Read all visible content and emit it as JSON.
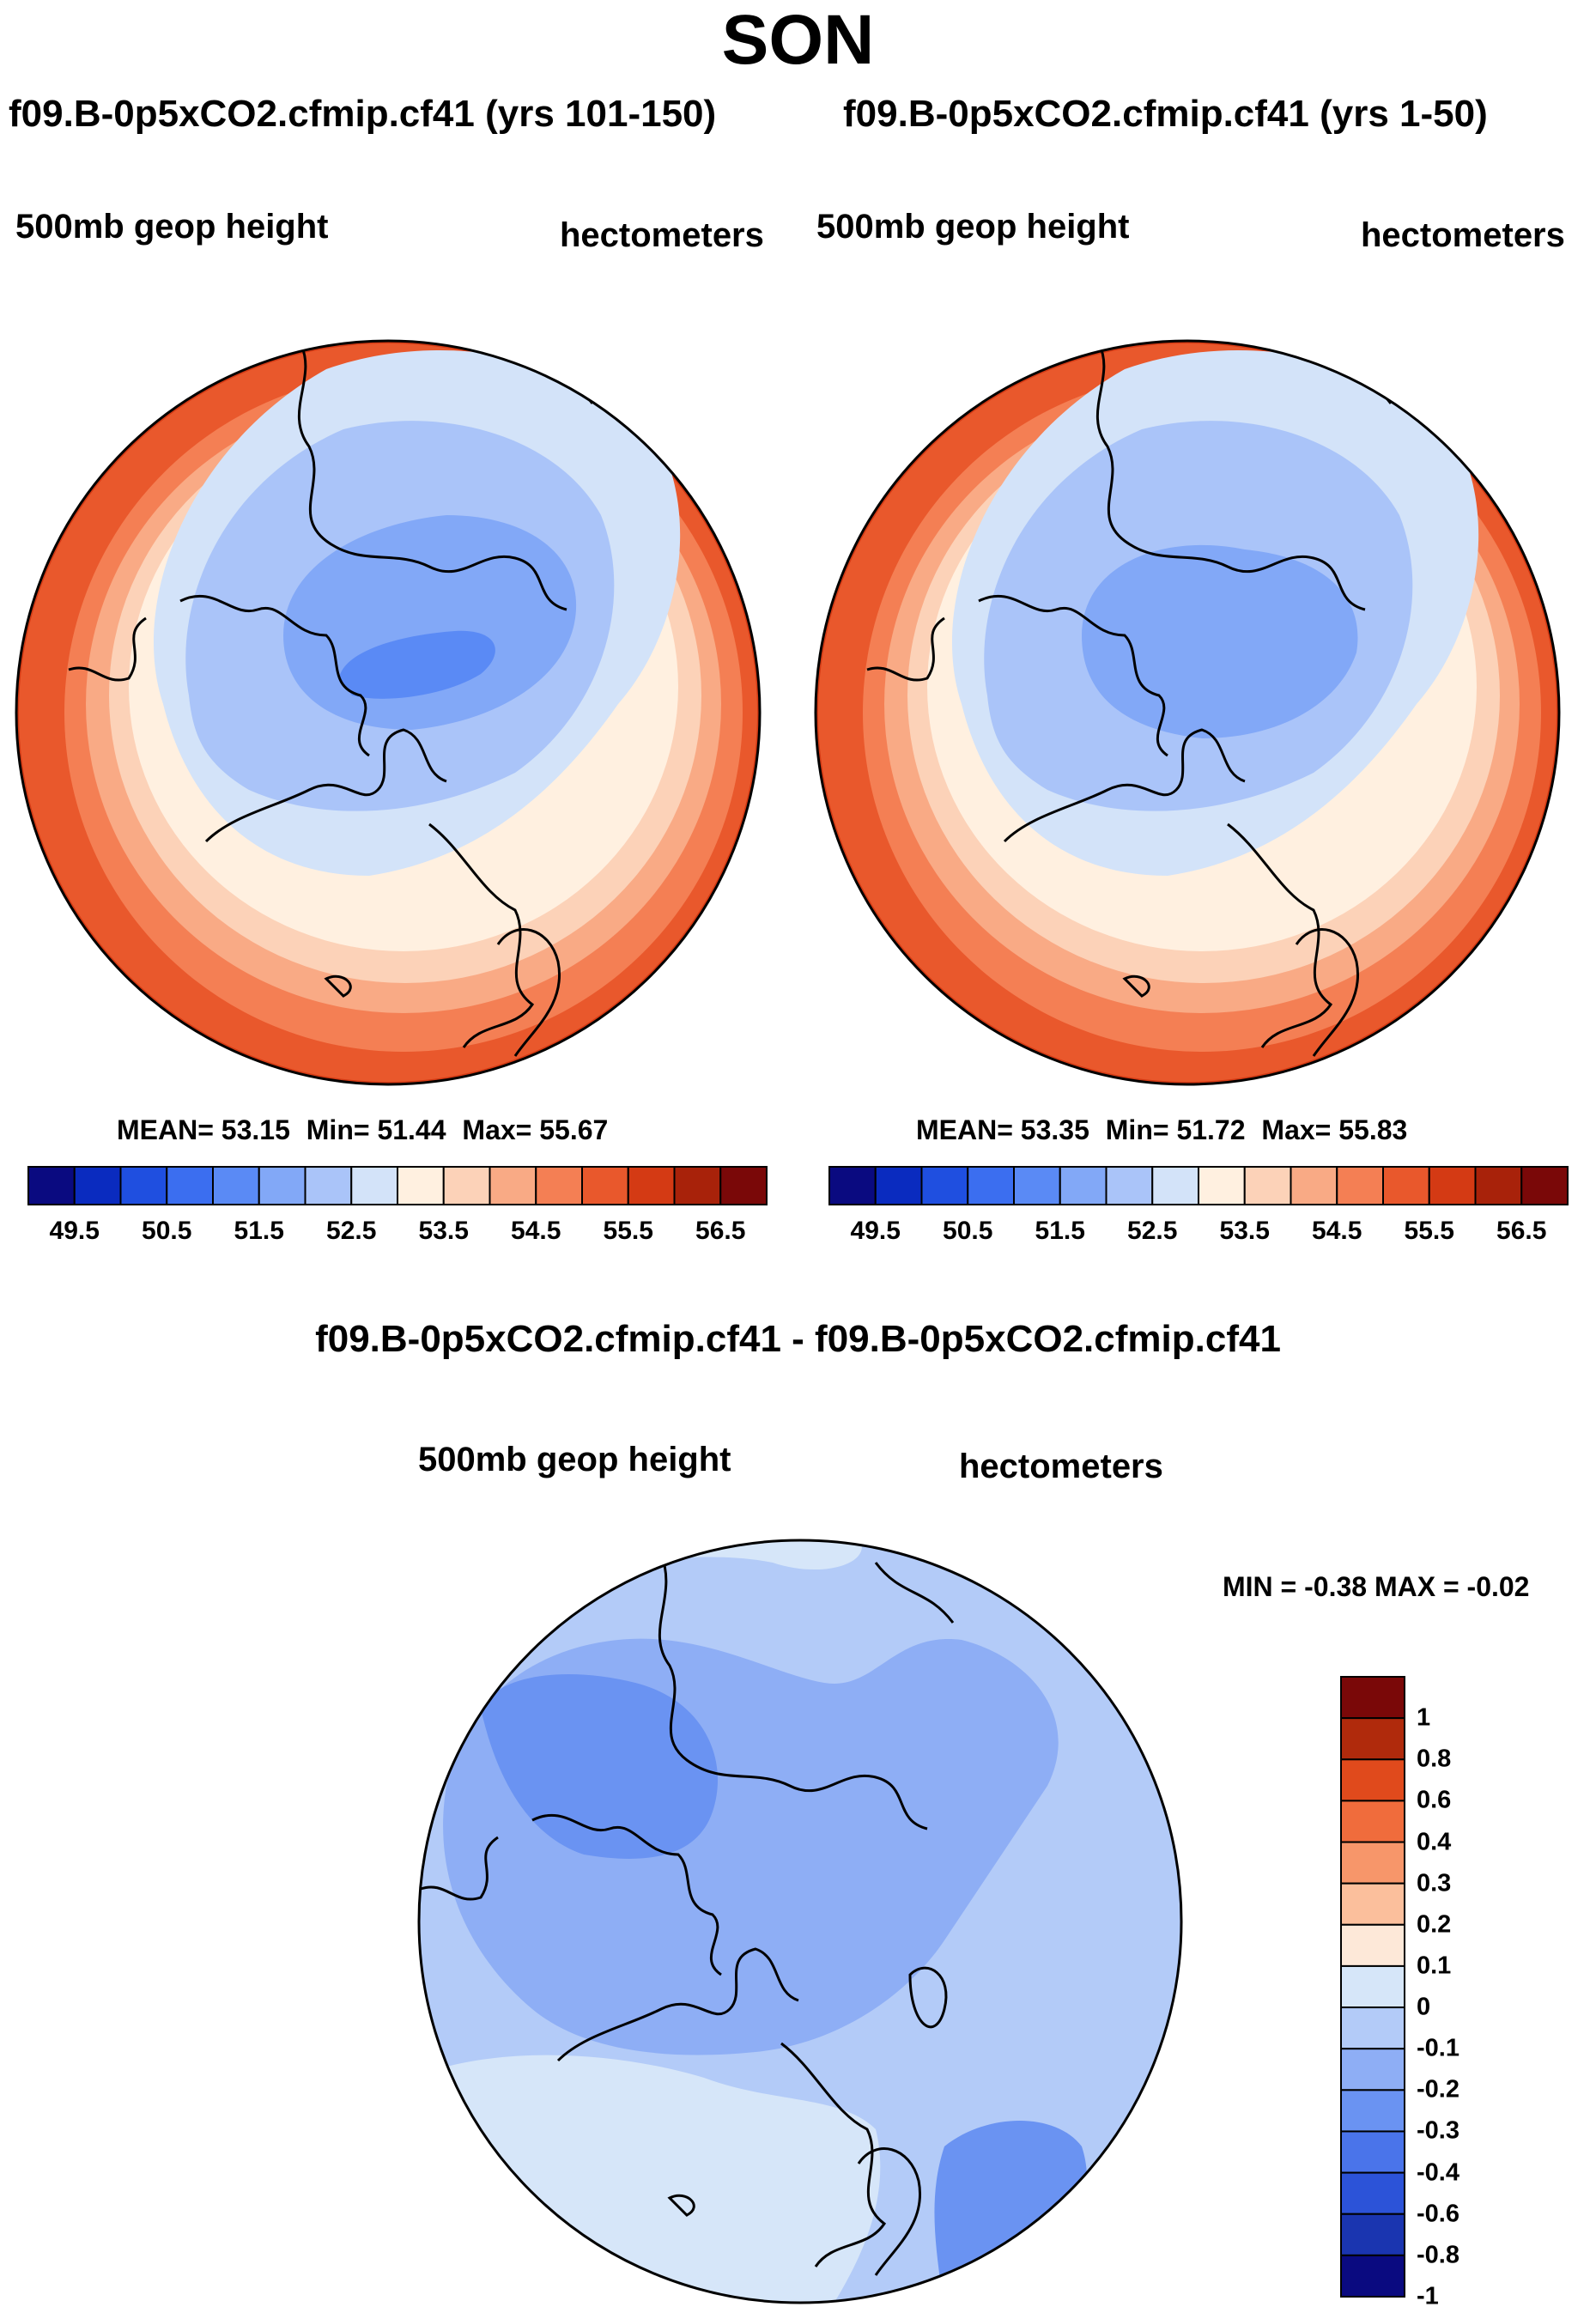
{
  "title": "SON",
  "panel_left": {
    "title": "f09.B-0p5xCO2.cfmip.cf41 (yrs 101-150)",
    "variable": "500mb geop height",
    "units": "hectometers",
    "mean_label": "MEAN=",
    "mean": "53.15",
    "min_label": "Min=",
    "min": "51.44",
    "max_label": "Max=",
    "max": "55.67"
  },
  "panel_right": {
    "title": "f09.B-0p5xCO2.cfmip.cf41 (yrs 1-50)",
    "variable": "500mb geop height",
    "units": "hectometers",
    "mean_label": "MEAN=",
    "mean": "53.35",
    "min_label": "Min=",
    "min": "51.72",
    "max_label": "Max=",
    "max": "55.83"
  },
  "panel_diff": {
    "title": "f09.B-0p5xCO2.cfmip.cf41 - f09.B-0p5xCO2.cfmip.cf41",
    "variable": "500mb geop height",
    "units": "hectometers",
    "minmax_text": "MIN =  -0.38 MAX =  -0.02"
  },
  "chart_data": [
    {
      "type": "heatmap",
      "projection": "north-polar-stereographic",
      "title": "f09.B-0p5xCO2.cfmip.cf41 (yrs 101-150)",
      "variable": "500mb geop height",
      "units": "hectometers",
      "mean": 53.15,
      "min": 51.44,
      "max": 55.67,
      "levels": [
        49.5,
        50,
        50.5,
        51,
        51.5,
        52,
        52.5,
        53,
        53.5,
        54,
        54.5,
        55,
        55.5,
        56,
        56.5
      ],
      "colorbar_tick_labels": [
        "49.5",
        "50.5",
        "51.5",
        "52.5",
        "53.5",
        "54.5",
        "55.5",
        "56.5"
      ]
    },
    {
      "type": "heatmap",
      "projection": "north-polar-stereographic",
      "title": "f09.B-0p5xCO2.cfmip.cf41 (yrs 1-50)",
      "variable": "500mb geop height",
      "units": "hectometers",
      "mean": 53.35,
      "min": 51.72,
      "max": 55.83,
      "levels": [
        49.5,
        50,
        50.5,
        51,
        51.5,
        52,
        52.5,
        53,
        53.5,
        54,
        54.5,
        55,
        55.5,
        56,
        56.5
      ],
      "colorbar_tick_labels": [
        "49.5",
        "50.5",
        "51.5",
        "52.5",
        "53.5",
        "54.5",
        "55.5",
        "56.5"
      ]
    },
    {
      "type": "heatmap",
      "projection": "north-polar-stereographic",
      "title": "f09.B-0p5xCO2.cfmip.cf41 - f09.B-0p5xCO2.cfmip.cf41",
      "variable": "500mb geop height",
      "units": "hectometers",
      "min": -0.38,
      "max": -0.02,
      "levels": [
        1,
        0.8,
        0.6,
        0.4,
        0.3,
        0.2,
        0.1,
        0,
        -0.1,
        -0.2,
        -0.3,
        -0.4,
        -0.6,
        -0.8,
        -1
      ],
      "colorbar_tick_labels": [
        "1",
        "0.8",
        "0.6",
        "0.4",
        "0.3",
        "0.2",
        "0.1",
        "0",
        "-0.1",
        "-0.2",
        "-0.3",
        "-0.4",
        "-0.6",
        "-0.8",
        "-1"
      ]
    }
  ],
  "palette": {
    "main": [
      "#0a0a80",
      "#0a2bbf",
      "#1f4fe0",
      "#3b6ef0",
      "#5a8af5",
      "#82a8f7",
      "#aac4f9",
      "#d3e3f9",
      "#fff0e0",
      "#fcd2b8",
      "#f9aa85",
      "#f47f54",
      "#e9582c",
      "#d43a14",
      "#a8220a",
      "#7a0808"
    ],
    "diff": [
      "#7a0808",
      "#b02a0c",
      "#e04a1c",
      "#f06c3c",
      "#f7966a",
      "#fbbf9c",
      "#fde8d8",
      "#d6e6f9",
      "#b3cbf8",
      "#8eaef5",
      "#6a93f2",
      "#4a74ea",
      "#2c53d8",
      "#1a35b0",
      "#0a0a80"
    ]
  }
}
